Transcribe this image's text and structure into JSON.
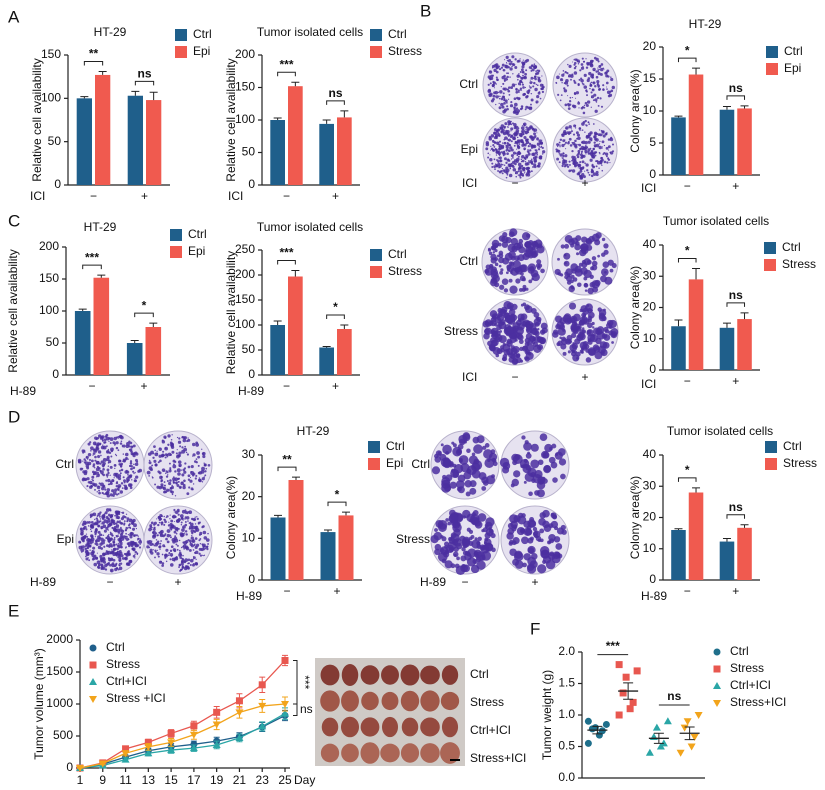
{
  "panel_labels": [
    "A",
    "B",
    "C",
    "D",
    "E",
    "F"
  ],
  "images": [
    {
      "row_labels": [
        "Ctrl",
        "Epi"
      ],
      "xlabel": "ICI",
      "categories": [
        "−",
        "+"
      ]
    },
    {
      "row_labels": [
        "Ctrl",
        "Stress"
      ],
      "xlabel": "ICI",
      "categories": [
        "−",
        "+"
      ]
    },
    {
      "row_labels": [
        "Ctrl",
        "Epi"
      ],
      "xlabel": "H-89",
      "categories": [
        "−",
        "+"
      ]
    },
    {
      "row_labels": [
        "Ctrl",
        "Stress"
      ],
      "xlabel": "H-89",
      "categories": [
        "−",
        "+"
      ]
    }
  ],
  "tumor_photo_labels": [
    "Ctrl",
    "Stress",
    "Ctrl+ICI",
    "Stress+ICI"
  ],
  "chart_data": [
    {
      "type": "bar",
      "title": "HT-29",
      "ylabel": "Relative cell availability",
      "xlabel": "ICI",
      "categories": [
        "−",
        "+"
      ],
      "series": [
        {
          "name": "Ctrl",
          "color": "#1f5f8b",
          "values": [
            100,
            103
          ],
          "errors": [
            2,
            5
          ]
        },
        {
          "name": "Epi",
          "color": "#f05a4f",
          "values": [
            127,
            98
          ],
          "errors": [
            4,
            9
          ]
        }
      ],
      "significance": [
        "**",
        "ns"
      ],
      "ylim": [
        0,
        150
      ],
      "yticks": [
        0,
        50,
        100,
        150
      ]
    },
    {
      "type": "bar",
      "title": "Tumor isolated cells",
      "ylabel": "Relative cell availability",
      "xlabel": "ICI",
      "categories": [
        "−",
        "+"
      ],
      "series": [
        {
          "name": "Ctrl",
          "color": "#1f5f8b",
          "values": [
            100,
            94
          ],
          "errors": [
            3,
            6
          ]
        },
        {
          "name": "Stress",
          "color": "#f05a4f",
          "values": [
            152,
            104
          ],
          "errors": [
            6,
            10
          ]
        }
      ],
      "significance": [
        "***",
        "ns"
      ],
      "ylim": [
        0,
        200
      ],
      "yticks": [
        0,
        50,
        100,
        150,
        200
      ]
    },
    {
      "type": "bar",
      "title": "HT-29",
      "ylabel": "Colony area(%)",
      "xlabel": "ICI",
      "categories": [
        "−",
        "+"
      ],
      "series": [
        {
          "name": "Ctrl",
          "color": "#1f5f8b",
          "values": [
            9,
            10.2
          ],
          "errors": [
            0.2,
            0.5
          ]
        },
        {
          "name": "Epi",
          "color": "#f05a4f",
          "values": [
            15.7,
            10.4
          ],
          "errors": [
            1,
            0.4
          ]
        }
      ],
      "significance": [
        "*",
        "ns"
      ],
      "ylim": [
        0,
        20
      ],
      "yticks": [
        0,
        5,
        10,
        15,
        20
      ]
    },
    {
      "type": "bar",
      "title": "Tumor isolated cells",
      "ylabel": "Colony area(%)",
      "xlabel": "ICI",
      "categories": [
        "−",
        "+"
      ],
      "series": [
        {
          "name": "Ctrl",
          "color": "#1f5f8b",
          "values": [
            14,
            13.5
          ],
          "errors": [
            2,
            1.5
          ]
        },
        {
          "name": "Stress",
          "color": "#f05a4f",
          "values": [
            29,
            16.3
          ],
          "errors": [
            3.5,
            2
          ]
        }
      ],
      "significance": [
        "*",
        "ns"
      ],
      "ylim": [
        0,
        40
      ],
      "yticks": [
        0,
        10,
        20,
        30,
        40
      ]
    },
    {
      "type": "bar",
      "title": "HT-29",
      "ylabel": "Relative cell availability",
      "xlabel": "H-89",
      "categories": [
        "−",
        "+"
      ],
      "series": [
        {
          "name": "Ctrl",
          "color": "#1f5f8b",
          "values": [
            100,
            50
          ],
          "errors": [
            3,
            4
          ]
        },
        {
          "name": "Epi",
          "color": "#f05a4f",
          "values": [
            152,
            75
          ],
          "errors": [
            4,
            6
          ]
        }
      ],
      "significance": [
        "***",
        "*"
      ],
      "ylim": [
        0,
        200
      ],
      "yticks": [
        0,
        50,
        100,
        150,
        200
      ]
    },
    {
      "type": "bar",
      "title": "Tumor isolated cells",
      "ylabel": "Relative cell availability",
      "xlabel": "H-89",
      "categories": [
        "−",
        "+"
      ],
      "series": [
        {
          "name": "Ctrl",
          "color": "#1f5f8b",
          "values": [
            100,
            55
          ],
          "errors": [
            8,
            2
          ]
        },
        {
          "name": "Stress",
          "color": "#f05a4f",
          "values": [
            197,
            92
          ],
          "errors": [
            12,
            8
          ]
        }
      ],
      "significance": [
        "***",
        "*"
      ],
      "ylim": [
        0,
        250
      ],
      "yticks": [
        0,
        50,
        100,
        150,
        200,
        250
      ]
    },
    {
      "type": "bar",
      "title": "HT-29",
      "ylabel": "Colony area(%)",
      "xlabel": "H-89",
      "categories": [
        "−",
        "+"
      ],
      "series": [
        {
          "name": "Ctrl",
          "color": "#1f5f8b",
          "values": [
            15,
            11.5
          ],
          "errors": [
            0.5,
            0.5
          ]
        },
        {
          "name": "Epi",
          "color": "#f05a4f",
          "values": [
            24,
            15.5
          ],
          "errors": [
            0.7,
            0.8
          ]
        }
      ],
      "significance": [
        "**",
        "*"
      ],
      "ylim": [
        0,
        30
      ],
      "yticks": [
        0,
        10,
        20,
        30
      ]
    },
    {
      "type": "bar",
      "title": "Tumor isolated cells",
      "ylabel": "Colony area(%)",
      "xlabel": "H-89",
      "categories": [
        "−",
        "+"
      ],
      "series": [
        {
          "name": "Ctrl",
          "color": "#1f5f8b",
          "values": [
            16,
            12.3
          ],
          "errors": [
            0.4,
            1
          ]
        },
        {
          "name": "Stress",
          "color": "#f05a4f",
          "values": [
            28,
            16.7
          ],
          "errors": [
            1.5,
            1
          ]
        }
      ],
      "significance": [
        "*",
        "ns"
      ],
      "ylim": [
        0,
        40
      ],
      "yticks": [
        0,
        10,
        20,
        30,
        40
      ]
    },
    {
      "type": "line",
      "ylabel": "Tumor volume (mm³)",
      "xlabel": "Day",
      "categories": [
        "1",
        "9",
        "11",
        "13",
        "15",
        "17",
        "19",
        "21",
        "23",
        "25"
      ],
      "series": [
        {
          "name": "Ctrl",
          "color": "#1f5f8b",
          "marker": "circle",
          "values": [
            0,
            60,
            170,
            270,
            330,
            370,
            420,
            490,
            640,
            820
          ],
          "errors": [
            0,
            20,
            30,
            40,
            50,
            50,
            60,
            60,
            70,
            80
          ]
        },
        {
          "name": "Stress",
          "color": "#e8574f",
          "marker": "square",
          "values": [
            0,
            80,
            300,
            400,
            540,
            660,
            870,
            1050,
            1300,
            1680
          ],
          "errors": [
            0,
            20,
            40,
            50,
            60,
            70,
            90,
            110,
            120,
            80
          ]
        },
        {
          "name": "Ctrl+ICI",
          "color": "#2aa6a6",
          "marker": "triangle",
          "values": [
            0,
            40,
            130,
            230,
            280,
            310,
            360,
            470,
            650,
            850
          ],
          "errors": [
            0,
            15,
            30,
            40,
            50,
            50,
            60,
            60,
            70,
            90
          ]
        },
        {
          "name": "Stress +ICI",
          "color": "#f2a41b",
          "marker": "triangle-down",
          "values": [
            0,
            70,
            230,
            330,
            400,
            520,
            680,
            870,
            970,
            1000
          ],
          "errors": [
            0,
            20,
            40,
            50,
            60,
            70,
            80,
            90,
            100,
            110
          ]
        }
      ],
      "significance": [
        "***",
        "ns"
      ],
      "ylim": [
        0,
        2000
      ],
      "yticks": [
        0,
        500,
        1000,
        1500,
        2000
      ]
    },
    {
      "type": "scatter",
      "ylabel": "Tumor weight (g)",
      "series": [
        {
          "name": "Ctrl",
          "color": "#1f6f8b",
          "marker": "circle",
          "values": [
            0.55,
            0.68,
            0.75,
            0.78,
            0.8,
            0.85,
            0.9
          ],
          "mean": 0.76,
          "sem": 0.06
        },
        {
          "name": "Stress",
          "color": "#e8574f",
          "marker": "square",
          "values": [
            1.0,
            1.1,
            1.2,
            1.35,
            1.6,
            1.7,
            1.8
          ],
          "mean": 1.38,
          "sem": 0.13
        },
        {
          "name": "Ctrl+ICI",
          "color": "#2aa6a6",
          "marker": "triangle",
          "values": [
            0.4,
            0.5,
            0.55,
            0.65,
            0.8,
            0.9
          ],
          "mean": 0.63,
          "sem": 0.08
        },
        {
          "name": "Stress+ICI",
          "color": "#f2a41b",
          "marker": "triangle-down",
          "values": [
            0.4,
            0.5,
            0.65,
            0.8,
            0.9,
            1.0
          ],
          "mean": 0.71,
          "sem": 0.1
        }
      ],
      "significance": [
        "***",
        "ns"
      ],
      "ylim": [
        0,
        2.0
      ],
      "yticks": [
        {
          "value": 0,
          "label": "0.0"
        },
        {
          "value": 0.5,
          "label": "0.5"
        },
        {
          "value": 1.0,
          "label": "1.0"
        },
        {
          "value": 1.5,
          "label": "1.5"
        },
        {
          "value": 2.0,
          "label": "2.0"
        }
      ]
    }
  ]
}
